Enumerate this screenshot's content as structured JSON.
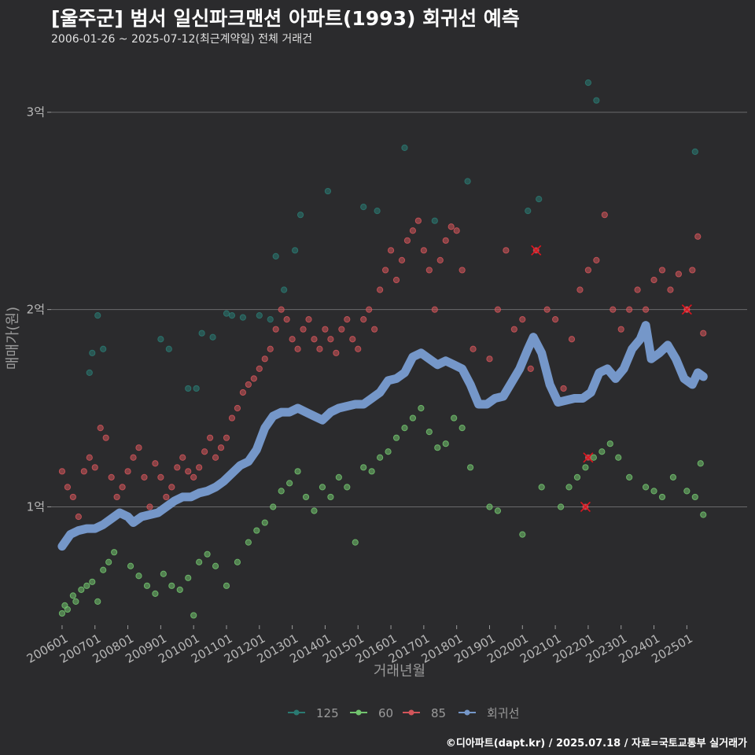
{
  "header": {
    "title": "[울주군] 범서 일신파크맨션 아파트(1993) 회귀선 예측",
    "subtitle": "2006-01-26 ~ 2025-07-12(최근계약일) 전체 거래건"
  },
  "footer": {
    "credit": "©디아파트(dapt.kr) / 2025.07.18 / 자료=국토교통부 실거래가"
  },
  "chart_data": {
    "type": "scatter",
    "xlabel": "거래년월",
    "ylabel": "매매가(원)",
    "x_range": [
      "2005-09",
      "2026-11"
    ],
    "y_range": [
      0.4,
      3.25
    ],
    "y_ticks": [
      {
        "value": 1,
        "label": "1억"
      },
      {
        "value": 2,
        "label": "2억"
      },
      {
        "value": 3,
        "label": "3억"
      }
    ],
    "x_ticks": [
      "200601",
      "200701",
      "200801",
      "200901",
      "201001",
      "201101",
      "201201",
      "201301",
      "201401",
      "201501",
      "201601",
      "201701",
      "201801",
      "201901",
      "202001",
      "202101",
      "202201",
      "202301",
      "202401",
      "202501"
    ],
    "legend_position": "bottom",
    "colors": {
      "s125": "#2a7a72",
      "s60": "#72c46e",
      "s85": "#d2555a",
      "reg": "#7597c9"
    },
    "series": [
      {
        "name": "125",
        "key": "s125",
        "points": [
          [
            "2006-12",
            1.78
          ],
          [
            "2007-02",
            1.97
          ],
          [
            "2007-04",
            1.8
          ],
          [
            "2006-11",
            1.68
          ],
          [
            "2009-01",
            1.85
          ],
          [
            "2009-04",
            1.8
          ],
          [
            "2009-11",
            1.6
          ],
          [
            "2010-02",
            1.6
          ],
          [
            "2010-04",
            1.88
          ],
          [
            "2010-08",
            1.86
          ],
          [
            "2011-01",
            1.98
          ],
          [
            "2011-03",
            1.97
          ],
          [
            "2011-07",
            1.96
          ],
          [
            "2012-01",
            1.97
          ],
          [
            "2012-05",
            1.95
          ],
          [
            "2012-07",
            2.27
          ],
          [
            "2012-10",
            2.1
          ],
          [
            "2013-02",
            2.3
          ],
          [
            "2013-04",
            2.48
          ],
          [
            "2014-02",
            2.6
          ],
          [
            "2015-03",
            2.52
          ],
          [
            "2015-08",
            2.5
          ],
          [
            "2016-06",
            2.82
          ],
          [
            "2017-05",
            2.45
          ],
          [
            "2018-05",
            2.65
          ],
          [
            "2020-03",
            2.5
          ],
          [
            "2020-07",
            2.56
          ],
          [
            "2022-01",
            3.15
          ],
          [
            "2022-04",
            3.06
          ],
          [
            "2025-04",
            2.8
          ]
        ]
      },
      {
        "name": "60",
        "key": "s60",
        "points": [
          [
            "2006-01",
            0.46
          ],
          [
            "2006-02",
            0.5
          ],
          [
            "2006-03",
            0.48
          ],
          [
            "2006-05",
            0.55
          ],
          [
            "2006-06",
            0.52
          ],
          [
            "2006-08",
            0.58
          ],
          [
            "2006-10",
            0.6
          ],
          [
            "2006-12",
            0.62
          ],
          [
            "2007-02",
            0.52
          ],
          [
            "2007-04",
            0.68
          ],
          [
            "2007-06",
            0.72
          ],
          [
            "2007-08",
            0.77
          ],
          [
            "2008-02",
            0.7
          ],
          [
            "2008-05",
            0.65
          ],
          [
            "2008-08",
            0.6
          ],
          [
            "2008-11",
            0.56
          ],
          [
            "2009-02",
            0.66
          ],
          [
            "2009-05",
            0.6
          ],
          [
            "2009-08",
            0.58
          ],
          [
            "2009-11",
            0.64
          ],
          [
            "2010-01",
            0.45
          ],
          [
            "2010-03",
            0.72
          ],
          [
            "2010-06",
            0.76
          ],
          [
            "2010-09",
            0.7
          ],
          [
            "2011-01",
            0.6
          ],
          [
            "2011-05",
            0.72
          ],
          [
            "2011-09",
            0.82
          ],
          [
            "2011-12",
            0.88
          ],
          [
            "2012-03",
            0.92
          ],
          [
            "2012-06",
            1.0
          ],
          [
            "2012-09",
            1.08
          ],
          [
            "2012-12",
            1.12
          ],
          [
            "2013-03",
            1.18
          ],
          [
            "2013-06",
            1.05
          ],
          [
            "2013-09",
            0.98
          ],
          [
            "2013-12",
            1.1
          ],
          [
            "2014-03",
            1.05
          ],
          [
            "2014-06",
            1.15
          ],
          [
            "2014-09",
            1.1
          ],
          [
            "2014-12",
            0.82
          ],
          [
            "2015-03",
            1.2
          ],
          [
            "2015-06",
            1.18
          ],
          [
            "2015-09",
            1.25
          ],
          [
            "2015-12",
            1.28
          ],
          [
            "2016-03",
            1.35
          ],
          [
            "2016-06",
            1.4
          ],
          [
            "2016-09",
            1.45
          ],
          [
            "2016-12",
            1.5
          ],
          [
            "2017-03",
            1.38
          ],
          [
            "2017-06",
            1.3
          ],
          [
            "2017-09",
            1.32
          ],
          [
            "2017-12",
            1.45
          ],
          [
            "2018-03",
            1.4
          ],
          [
            "2018-06",
            1.2
          ],
          [
            "2019-01",
            1.0
          ],
          [
            "2019-04",
            0.98
          ],
          [
            "2020-01",
            0.86
          ],
          [
            "2020-08",
            1.1
          ],
          [
            "2021-03",
            1.0
          ],
          [
            "2021-06",
            1.1
          ],
          [
            "2021-09",
            1.15
          ],
          [
            "2021-12",
            1.2
          ],
          [
            "2022-03",
            1.25
          ],
          [
            "2022-06",
            1.28
          ],
          [
            "2022-09",
            1.32
          ],
          [
            "2022-12",
            1.25
          ],
          [
            "2023-04",
            1.15
          ],
          [
            "2023-10",
            1.1
          ],
          [
            "2024-01",
            1.08
          ],
          [
            "2024-04",
            1.05
          ],
          [
            "2024-08",
            1.15
          ],
          [
            "2025-01",
            1.08
          ],
          [
            "2025-04",
            1.05
          ],
          [
            "2025-06",
            1.22
          ],
          [
            "2025-07",
            0.96
          ]
        ]
      },
      {
        "name": "85",
        "key": "s85",
        "points": [
          [
            "2006-01",
            1.18
          ],
          [
            "2006-03",
            1.1
          ],
          [
            "2006-05",
            1.05
          ],
          [
            "2006-07",
            0.95
          ],
          [
            "2006-09",
            1.18
          ],
          [
            "2006-11",
            1.25
          ],
          [
            "2007-01",
            1.2
          ],
          [
            "2007-03",
            1.4
          ],
          [
            "2007-05",
            1.35
          ],
          [
            "2007-07",
            1.15
          ],
          [
            "2007-09",
            1.05
          ],
          [
            "2007-11",
            1.1
          ],
          [
            "2008-01",
            1.18
          ],
          [
            "2008-03",
            1.25
          ],
          [
            "2008-05",
            1.3
          ],
          [
            "2008-07",
            1.15
          ],
          [
            "2008-09",
            1.0
          ],
          [
            "2008-11",
            1.22
          ],
          [
            "2009-01",
            1.15
          ],
          [
            "2009-03",
            1.05
          ],
          [
            "2009-05",
            1.1
          ],
          [
            "2009-07",
            1.2
          ],
          [
            "2009-09",
            1.25
          ],
          [
            "2009-11",
            1.18
          ],
          [
            "2010-01",
            1.15
          ],
          [
            "2010-03",
            1.2
          ],
          [
            "2010-05",
            1.28
          ],
          [
            "2010-07",
            1.35
          ],
          [
            "2010-09",
            1.25
          ],
          [
            "2010-11",
            1.3
          ],
          [
            "2011-01",
            1.35
          ],
          [
            "2011-03",
            1.45
          ],
          [
            "2011-05",
            1.5
          ],
          [
            "2011-07",
            1.58
          ],
          [
            "2011-09",
            1.62
          ],
          [
            "2011-11",
            1.65
          ],
          [
            "2012-01",
            1.7
          ],
          [
            "2012-03",
            1.75
          ],
          [
            "2012-05",
            1.8
          ],
          [
            "2012-07",
            1.9
          ],
          [
            "2012-09",
            2.0
          ],
          [
            "2012-11",
            1.95
          ],
          [
            "2013-01",
            1.85
          ],
          [
            "2013-03",
            1.8
          ],
          [
            "2013-05",
            1.9
          ],
          [
            "2013-07",
            1.95
          ],
          [
            "2013-09",
            1.85
          ],
          [
            "2013-11",
            1.8
          ],
          [
            "2014-01",
            1.9
          ],
          [
            "2014-03",
            1.85
          ],
          [
            "2014-05",
            1.78
          ],
          [
            "2014-07",
            1.9
          ],
          [
            "2014-09",
            1.95
          ],
          [
            "2014-11",
            1.85
          ],
          [
            "2015-01",
            1.8
          ],
          [
            "2015-03",
            1.95
          ],
          [
            "2015-05",
            2.0
          ],
          [
            "2015-07",
            1.9
          ],
          [
            "2015-09",
            2.1
          ],
          [
            "2015-11",
            2.2
          ],
          [
            "2016-01",
            2.3
          ],
          [
            "2016-03",
            2.15
          ],
          [
            "2016-05",
            2.25
          ],
          [
            "2016-07",
            2.35
          ],
          [
            "2016-09",
            2.4
          ],
          [
            "2016-11",
            2.45
          ],
          [
            "2017-01",
            2.3
          ],
          [
            "2017-03",
            2.2
          ],
          [
            "2017-05",
            2.0
          ],
          [
            "2017-07",
            2.25
          ],
          [
            "2017-09",
            2.35
          ],
          [
            "2017-11",
            2.42
          ],
          [
            "2018-01",
            2.4
          ],
          [
            "2018-03",
            2.2
          ],
          [
            "2018-07",
            1.8
          ],
          [
            "2019-01",
            1.75
          ],
          [
            "2019-04",
            2.0
          ],
          [
            "2019-07",
            2.3
          ],
          [
            "2019-10",
            1.9
          ],
          [
            "2020-01",
            1.95
          ],
          [
            "2020-04",
            1.7
          ],
          [
            "2020-07",
            1.8
          ],
          [
            "2020-10",
            2.0
          ],
          [
            "2021-01",
            1.95
          ],
          [
            "2021-04",
            1.6
          ],
          [
            "2021-07",
            1.85
          ],
          [
            "2021-10",
            2.1
          ],
          [
            "2022-01",
            2.2
          ],
          [
            "2022-04",
            2.25
          ],
          [
            "2022-07",
            2.48
          ],
          [
            "2022-10",
            2.0
          ],
          [
            "2023-01",
            1.9
          ],
          [
            "2023-04",
            2.0
          ],
          [
            "2023-07",
            2.1
          ],
          [
            "2023-10",
            2.0
          ],
          [
            "2024-01",
            2.15
          ],
          [
            "2024-04",
            2.2
          ],
          [
            "2024-07",
            2.1
          ],
          [
            "2024-10",
            2.18
          ],
          [
            "2025-01",
            2.0
          ],
          [
            "2025-03",
            2.2
          ],
          [
            "2025-05",
            2.37
          ],
          [
            "2025-07",
            1.88
          ]
        ]
      }
    ],
    "highlighted": [
      [
        "2020-06",
        2.3
      ],
      [
        "2021-12",
        1.0
      ],
      [
        "2022-01",
        1.25
      ],
      [
        "2025-01",
        2.0
      ]
    ],
    "regression": {
      "name": "회귀선",
      "key": "reg",
      "points": [
        [
          "2006-01",
          0.8
        ],
        [
          "2006-04",
          0.86
        ],
        [
          "2006-07",
          0.88
        ],
        [
          "2006-10",
          0.89
        ],
        [
          "2007-01",
          0.89
        ],
        [
          "2007-04",
          0.91
        ],
        [
          "2007-07",
          0.94
        ],
        [
          "2007-10",
          0.97
        ],
        [
          "2008-01",
          0.95
        ],
        [
          "2008-03",
          0.92
        ],
        [
          "2008-06",
          0.95
        ],
        [
          "2008-09",
          0.96
        ],
        [
          "2008-12",
          0.97
        ],
        [
          "2009-03",
          1.0
        ],
        [
          "2009-06",
          1.03
        ],
        [
          "2009-09",
          1.05
        ],
        [
          "2009-12",
          1.05
        ],
        [
          "2010-03",
          1.07
        ],
        [
          "2010-06",
          1.08
        ],
        [
          "2010-09",
          1.1
        ],
        [
          "2010-12",
          1.13
        ],
        [
          "2011-03",
          1.17
        ],
        [
          "2011-06",
          1.21
        ],
        [
          "2011-09",
          1.23
        ],
        [
          "2011-12",
          1.29
        ],
        [
          "2012-03",
          1.4
        ],
        [
          "2012-06",
          1.46
        ],
        [
          "2012-09",
          1.48
        ],
        [
          "2012-12",
          1.48
        ],
        [
          "2013-03",
          1.5
        ],
        [
          "2013-06",
          1.48
        ],
        [
          "2013-09",
          1.46
        ],
        [
          "2013-12",
          1.44
        ],
        [
          "2014-03",
          1.48
        ],
        [
          "2014-06",
          1.5
        ],
        [
          "2014-09",
          1.51
        ],
        [
          "2014-12",
          1.52
        ],
        [
          "2015-03",
          1.52
        ],
        [
          "2015-06",
          1.55
        ],
        [
          "2015-09",
          1.58
        ],
        [
          "2015-12",
          1.64
        ],
        [
          "2016-03",
          1.65
        ],
        [
          "2016-06",
          1.68
        ],
        [
          "2016-09",
          1.76
        ],
        [
          "2016-12",
          1.78
        ],
        [
          "2017-03",
          1.75
        ],
        [
          "2017-06",
          1.72
        ],
        [
          "2017-09",
          1.74
        ],
        [
          "2017-12",
          1.72
        ],
        [
          "2018-03",
          1.7
        ],
        [
          "2018-06",
          1.62
        ],
        [
          "2018-09",
          1.52
        ],
        [
          "2018-12",
          1.52
        ],
        [
          "2019-03",
          1.55
        ],
        [
          "2019-06",
          1.56
        ],
        [
          "2019-09",
          1.63
        ],
        [
          "2019-12",
          1.7
        ],
        [
          "2020-03",
          1.8
        ],
        [
          "2020-05",
          1.86
        ],
        [
          "2020-08",
          1.78
        ],
        [
          "2020-11",
          1.62
        ],
        [
          "2021-02",
          1.53
        ],
        [
          "2021-05",
          1.54
        ],
        [
          "2021-08",
          1.55
        ],
        [
          "2021-11",
          1.55
        ],
        [
          "2022-02",
          1.58
        ],
        [
          "2022-05",
          1.68
        ],
        [
          "2022-08",
          1.7
        ],
        [
          "2022-11",
          1.65
        ],
        [
          "2023-02",
          1.7
        ],
        [
          "2023-05",
          1.8
        ],
        [
          "2023-08",
          1.85
        ],
        [
          "2023-10",
          1.92
        ],
        [
          "2023-12",
          1.75
        ],
        [
          "2024-03",
          1.78
        ],
        [
          "2024-06",
          1.82
        ],
        [
          "2024-09",
          1.75
        ],
        [
          "2024-12",
          1.65
        ],
        [
          "2025-03",
          1.62
        ],
        [
          "2025-05",
          1.68
        ],
        [
          "2025-07",
          1.66
        ]
      ]
    }
  }
}
